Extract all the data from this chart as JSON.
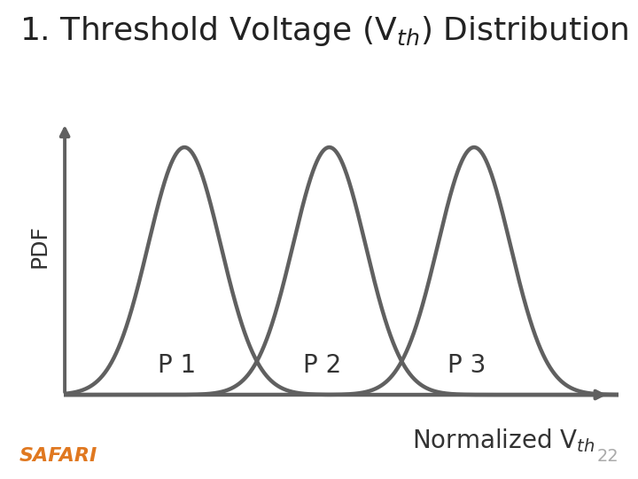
{
  "background_color": "#ffffff",
  "curve_color": "#606060",
  "curve_linewidth": 3.2,
  "peaks": [
    2.5,
    5.5,
    8.5
  ],
  "sigma": 0.75,
  "labels": [
    "P 1",
    "P 2",
    "P 3"
  ],
  "label_fontsize": 20,
  "ylabel": "PDF",
  "ylabel_fontsize": 18,
  "xlabel_fontsize": 20,
  "axis_color": "#606060",
  "axis_linewidth": 2.8,
  "xlim": [
    0.0,
    11.5
  ],
  "ylim": [
    0.0,
    1.15
  ],
  "safari_color": "#e07820",
  "safari_fontsize": 16,
  "page_number": "22",
  "page_fontsize": 14,
  "title_fontsize": 26
}
